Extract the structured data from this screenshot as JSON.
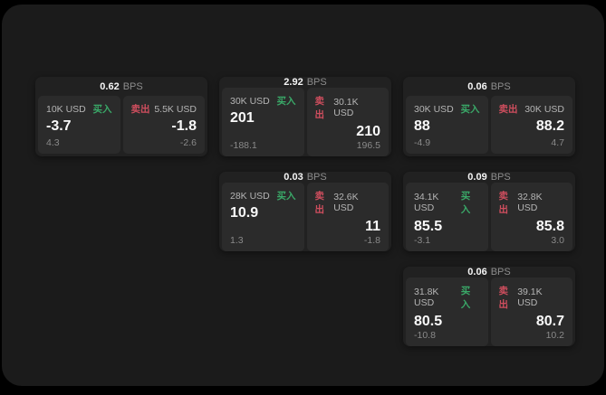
{
  "labels": {
    "buy": "买入",
    "sell": "卖出",
    "bps_unit": "BPS"
  },
  "colors": {
    "buy": "#3aa868",
    "sell": "#cf4e5e",
    "panel_bg": "#1b1b1b",
    "card_bg": "#212121",
    "tile_bg": "#2b2b2b"
  },
  "cards": [
    {
      "bps": "0.62",
      "buy": {
        "size": "10K USD",
        "value": "-3.7",
        "delta": "4.3"
      },
      "sell": {
        "size": "5.5K USD",
        "value": "-1.8",
        "delta": "-2.6"
      }
    },
    {
      "bps": "2.92",
      "buy": {
        "size": "30K USD",
        "value": "201",
        "delta": "-188.1"
      },
      "sell": {
        "size": "30.1K USD",
        "value": "210",
        "delta": "196.5"
      }
    },
    {
      "bps": "0.06",
      "buy": {
        "size": "30K USD",
        "value": "88",
        "delta": "-4.9"
      },
      "sell": {
        "size": "30K USD",
        "value": "88.2",
        "delta": "4.7"
      }
    },
    {
      "bps": "0.03",
      "buy": {
        "size": "28K USD",
        "value": "10.9",
        "delta": "1.3"
      },
      "sell": {
        "size": "32.6K USD",
        "value": "11",
        "delta": "-1.8"
      }
    },
    {
      "bps": "0.09",
      "buy": {
        "size": "34.1K USD",
        "value": "85.5",
        "delta": "-3.1"
      },
      "sell": {
        "size": "32.8K USD",
        "value": "85.8",
        "delta": "3.0"
      }
    },
    {
      "bps": "0.06",
      "buy": {
        "size": "31.8K USD",
        "value": "80.5",
        "delta": "-10.8"
      },
      "sell": {
        "size": "39.1K USD",
        "value": "80.7",
        "delta": "10.2"
      }
    }
  ]
}
